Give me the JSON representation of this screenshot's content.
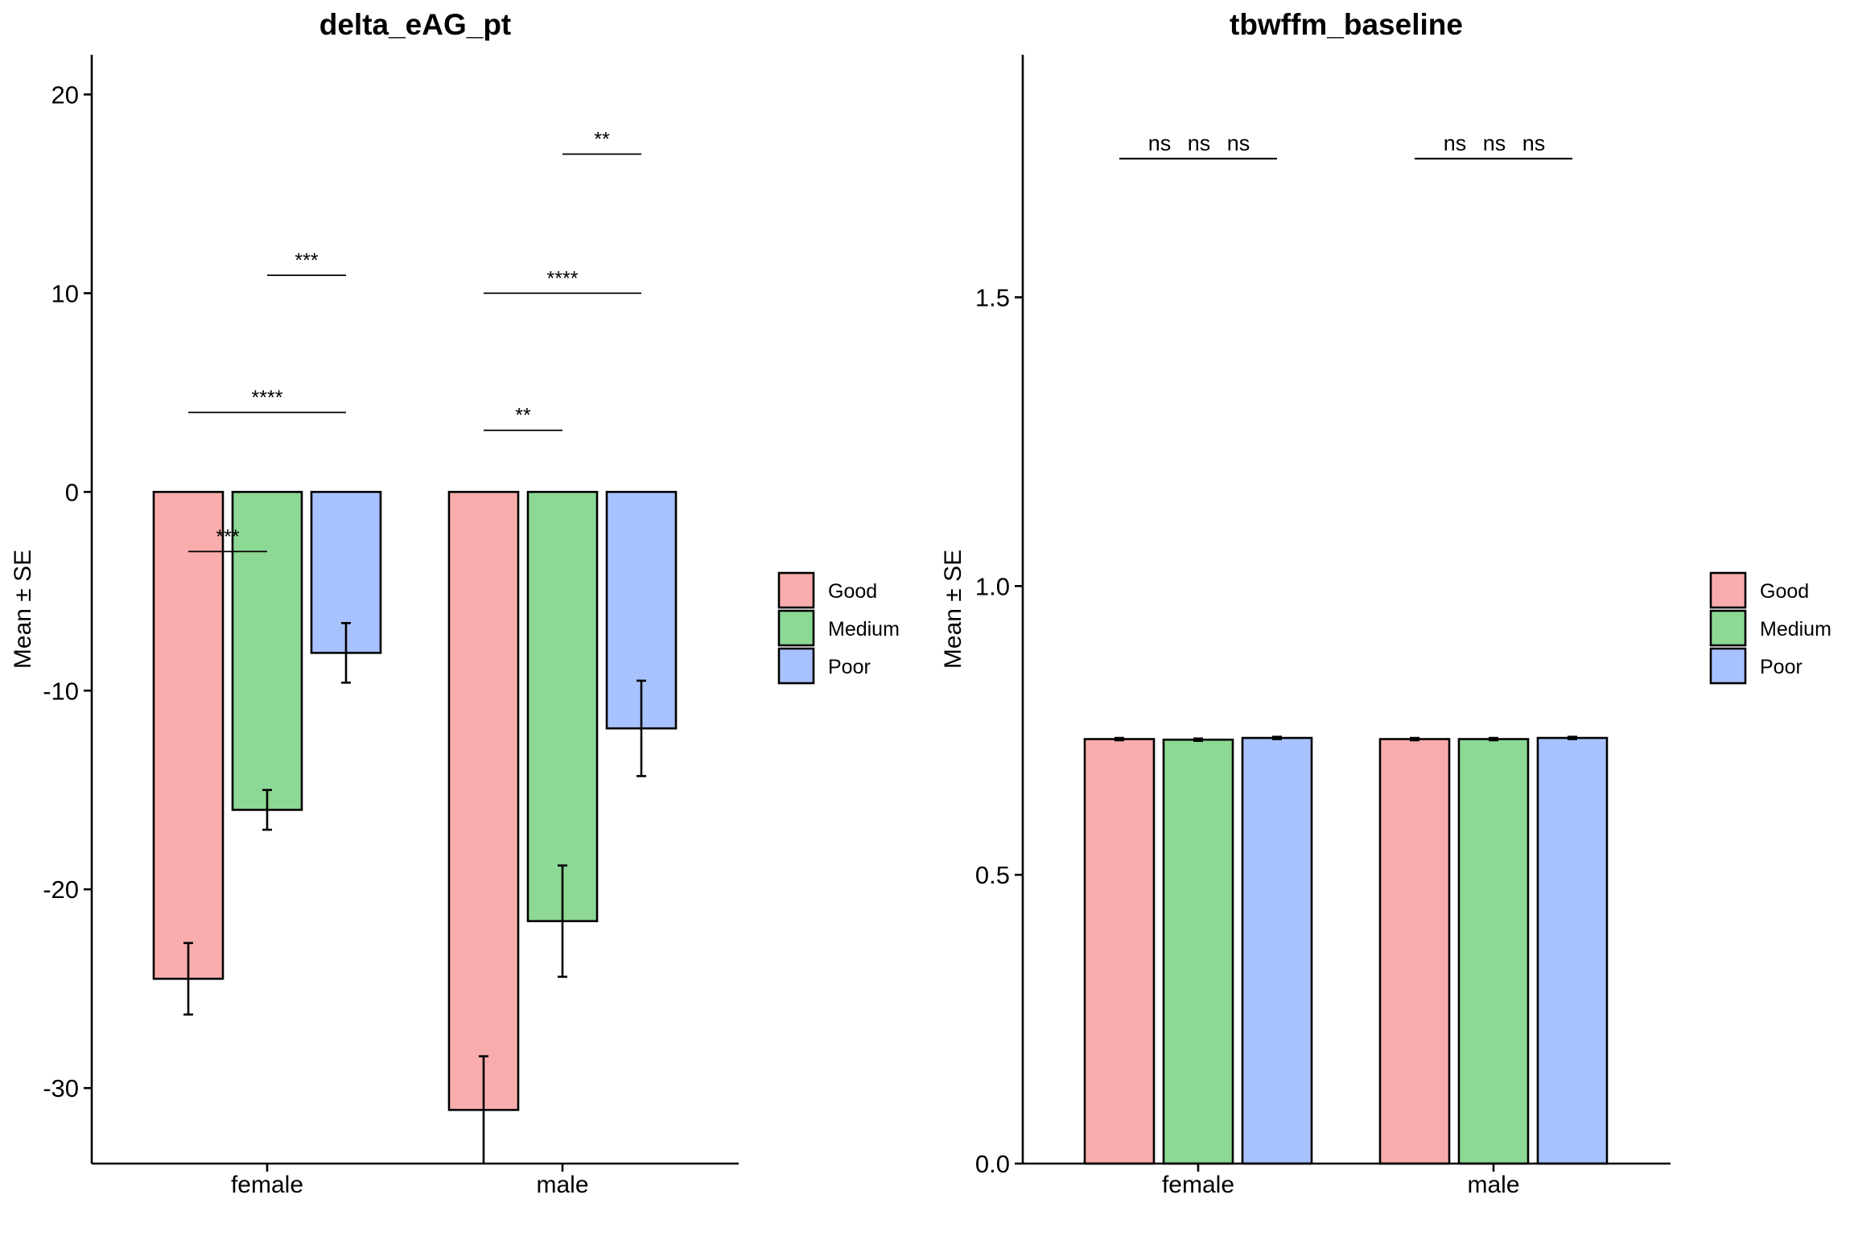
{
  "chart_data": [
    {
      "type": "bar",
      "title": "delta_eAG_pt",
      "xlabel": "",
      "ylabel": "Mean ± SE",
      "categories": [
        "female",
        "male"
      ],
      "ylim": [
        -33.8,
        22
      ],
      "yticks": [
        20,
        10,
        0,
        -10,
        -20,
        -30
      ],
      "ytick_labels": [
        "20",
        "10",
        "0",
        "-10",
        "-20",
        "-30"
      ],
      "series": [
        {
          "name": "Good",
          "color": "#F8ACAC",
          "values": [
            -24.5,
            -31.1
          ],
          "se": [
            1.8,
            2.7
          ]
        },
        {
          "name": "Medium",
          "color": "#8CD894",
          "values": [
            -16.0,
            -21.6
          ],
          "se": [
            1.0,
            2.8
          ]
        },
        {
          "name": "Poor",
          "color": "#A8C2FF",
          "values": [
            -8.1,
            -11.9
          ],
          "se": [
            1.5,
            2.4
          ]
        }
      ],
      "annotations": [
        {
          "category": 0,
          "from": 0,
          "to": 1,
          "y": -3.0,
          "label": "***"
        },
        {
          "category": 0,
          "from": 0,
          "to": 2,
          "y": 4.0,
          "label": "****"
        },
        {
          "category": 0,
          "from": 1,
          "to": 2,
          "y": 10.9,
          "label": "***"
        },
        {
          "category": 1,
          "from": 0,
          "to": 1,
          "y": 3.1,
          "label": "**"
        },
        {
          "category": 1,
          "from": 0,
          "to": 2,
          "y": 10.0,
          "label": "****"
        },
        {
          "category": 1,
          "from": 1,
          "to": 2,
          "y": 17.0,
          "label": "**"
        }
      ],
      "legend": {
        "position": "right",
        "entries": [
          "Good",
          "Medium",
          "Poor"
        ]
      },
      "grid": false
    },
    {
      "type": "bar",
      "title": "tbwffm_baseline",
      "xlabel": "",
      "ylabel": "Mean ± SE",
      "categories": [
        "female",
        "male"
      ],
      "ylim": [
        0,
        1.92
      ],
      "yticks": [
        0,
        0.5,
        1.0,
        1.5
      ],
      "ytick_labels": [
        "0.0",
        "0.5",
        "1.0",
        "1.5"
      ],
      "series": [
        {
          "name": "Good",
          "color": "#F8ACAC",
          "values": [
            0.735,
            0.735
          ],
          "se": [
            0.002,
            0.002
          ]
        },
        {
          "name": "Medium",
          "color": "#8CD894",
          "values": [
            0.734,
            0.735
          ],
          "se": [
            0.002,
            0.002
          ]
        },
        {
          "name": "Poor",
          "color": "#A8C2FF",
          "values": [
            0.737,
            0.737
          ],
          "se": [
            0.002,
            0.002
          ]
        }
      ],
      "annotations": [
        {
          "category": 0,
          "from": 0,
          "to": 1,
          "y": 1.74,
          "label": "ns"
        },
        {
          "category": 0,
          "from": 0,
          "to": 2,
          "y": 1.74,
          "label": "ns"
        },
        {
          "category": 0,
          "from": 1,
          "to": 2,
          "y": 1.74,
          "label": "ns"
        },
        {
          "category": 1,
          "from": 0,
          "to": 1,
          "y": 1.74,
          "label": "ns"
        },
        {
          "category": 1,
          "from": 0,
          "to": 2,
          "y": 1.74,
          "label": "ns"
        },
        {
          "category": 1,
          "from": 1,
          "to": 2,
          "y": 1.74,
          "label": "ns"
        }
      ],
      "legend": {
        "position": "right",
        "entries": [
          "Good",
          "Medium",
          "Poor"
        ]
      },
      "grid": false
    }
  ]
}
